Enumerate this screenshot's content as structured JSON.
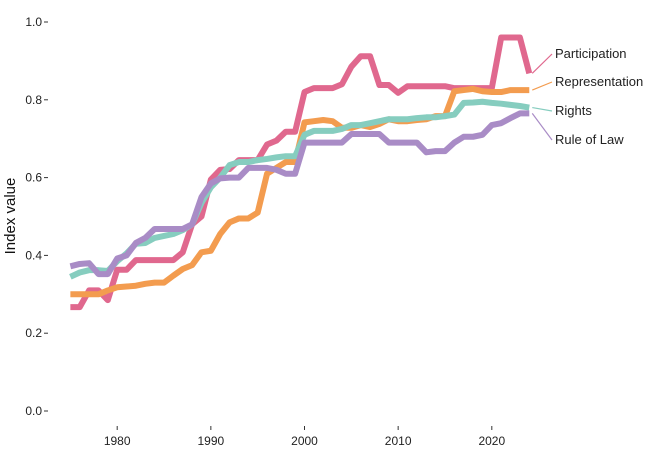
{
  "chart_data": {
    "type": "line",
    "title": "",
    "xlabel": "",
    "ylabel": "Index value",
    "xlim": [
      1974,
      2026
    ],
    "ylim": [
      0,
      1.0
    ],
    "x_ticks": [
      "1980",
      "1990",
      "2000",
      "2010",
      "2020"
    ],
    "y_ticks": [
      "0.0",
      "0.2",
      "0.4",
      "0.6",
      "0.8",
      "1.0"
    ],
    "grid": false,
    "legend": "direct labels at line ends",
    "x": [
      1975,
      1976,
      1977,
      1978,
      1979,
      1980,
      1981,
      1982,
      1983,
      1984,
      1985,
      1986,
      1987,
      1988,
      1989,
      1990,
      1991,
      1992,
      1993,
      1994,
      1995,
      1996,
      1997,
      1998,
      1999,
      2000,
      2001,
      2002,
      2003,
      2004,
      2005,
      2006,
      2007,
      2008,
      2009,
      2010,
      2011,
      2012,
      2013,
      2014,
      2015,
      2016,
      2017,
      2018,
      2019,
      2020,
      2021,
      2022,
      2023,
      2024
    ],
    "series": [
      {
        "name": "Participation",
        "color": "#e0688e",
        "values": [
          0.267,
          0.267,
          0.31,
          0.31,
          0.285,
          0.363,
          0.363,
          0.388,
          0.388,
          0.388,
          0.388,
          0.388,
          0.408,
          0.48,
          0.5,
          0.595,
          0.62,
          0.622,
          0.645,
          0.645,
          0.645,
          0.685,
          0.695,
          0.718,
          0.718,
          0.82,
          0.83,
          0.83,
          0.83,
          0.84,
          0.885,
          0.912,
          0.912,
          0.838,
          0.838,
          0.818,
          0.835,
          0.835,
          0.835,
          0.835,
          0.835,
          0.83,
          0.83,
          0.83,
          0.83,
          0.83,
          0.96,
          0.96,
          0.96,
          0.868
        ]
      },
      {
        "name": "Representation",
        "color": "#f39c4f",
        "values": [
          0.3,
          0.3,
          0.3,
          0.3,
          0.31,
          0.318,
          0.32,
          0.322,
          0.327,
          0.33,
          0.33,
          0.348,
          0.365,
          0.375,
          0.408,
          0.412,
          0.455,
          0.485,
          0.495,
          0.495,
          0.51,
          0.61,
          0.625,
          0.64,
          0.64,
          0.742,
          0.745,
          0.748,
          0.745,
          0.728,
          0.728,
          0.735,
          0.73,
          0.738,
          0.75,
          0.745,
          0.745,
          0.748,
          0.75,
          0.758,
          0.758,
          0.822,
          0.825,
          0.828,
          0.822,
          0.82,
          0.82,
          0.825,
          0.825,
          0.825
        ]
      },
      {
        "name": "Rights",
        "color": "#86cdbf",
        "values": [
          0.345,
          0.356,
          0.362,
          0.362,
          0.36,
          0.385,
          0.405,
          0.43,
          0.432,
          0.445,
          0.45,
          0.455,
          0.465,
          0.48,
          0.535,
          0.575,
          0.6,
          0.632,
          0.64,
          0.64,
          0.645,
          0.648,
          0.652,
          0.655,
          0.655,
          0.71,
          0.72,
          0.72,
          0.72,
          0.725,
          0.735,
          0.735,
          0.74,
          0.745,
          0.75,
          0.75,
          0.75,
          0.753,
          0.755,
          0.755,
          0.758,
          0.762,
          0.792,
          0.793,
          0.795,
          0.792,
          0.79,
          0.787,
          0.784,
          0.78
        ]
      },
      {
        "name": "Rule of Law",
        "color": "#a98cc6",
        "values": [
          0.372,
          0.378,
          0.38,
          0.352,
          0.352,
          0.392,
          0.4,
          0.432,
          0.445,
          0.468,
          0.468,
          0.468,
          0.468,
          0.48,
          0.55,
          0.585,
          0.598,
          0.6,
          0.6,
          0.625,
          0.625,
          0.625,
          0.62,
          0.61,
          0.61,
          0.69,
          0.69,
          0.69,
          0.69,
          0.69,
          0.712,
          0.712,
          0.712,
          0.712,
          0.69,
          0.69,
          0.69,
          0.69,
          0.665,
          0.668,
          0.668,
          0.69,
          0.705,
          0.705,
          0.71,
          0.735,
          0.74,
          0.753,
          0.765,
          0.765
        ]
      }
    ]
  }
}
